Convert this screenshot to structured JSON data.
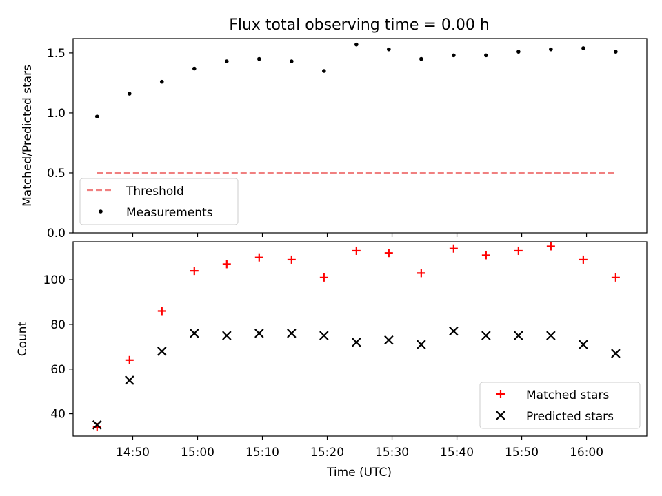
{
  "chart_data": [
    {
      "type": "scatter",
      "title": "Flux total observing time = 0.00 h",
      "xlabel": "",
      "ylabel": "Matched/Predicted stars",
      "ylim": [
        0,
        1.62
      ],
      "yticks": [
        0.0,
        0.5,
        1.0,
        1.5
      ],
      "ytick_labels": [
        "0.0",
        "0.5",
        "1.0",
        "1.5"
      ],
      "x_minutes": [
        884.5,
        889.5,
        894.5,
        899.5,
        904.5,
        909.5,
        914.5,
        919.5,
        924.5,
        929.5,
        934.5,
        939.5,
        944.5,
        949.5,
        954.5,
        959.5,
        964.5
      ],
      "series": [
        {
          "name": "Measurements",
          "marker": "dot",
          "color": "#000000",
          "values": [
            0.97,
            1.16,
            1.26,
            1.37,
            1.43,
            1.45,
            1.43,
            1.35,
            1.57,
            1.53,
            1.45,
            1.48,
            1.48,
            1.51,
            1.53,
            1.54,
            1.51
          ]
        }
      ],
      "threshold": {
        "name": "Threshold",
        "value": 0.5,
        "color": "#f08080",
        "style": "dashed"
      },
      "legend": {
        "position": "lower-left",
        "entries": [
          "Threshold",
          "Measurements"
        ]
      }
    },
    {
      "type": "scatter",
      "xlabel": "Time (UTC)",
      "ylabel": "Count",
      "ylim": [
        30,
        117
      ],
      "yticks": [
        40,
        60,
        80,
        100
      ],
      "ytick_labels": [
        "40",
        "60",
        "80",
        "100"
      ],
      "xlim": [
        880.8,
        969.3
      ],
      "xticks": [
        890,
        900,
        910,
        920,
        930,
        940,
        950,
        960
      ],
      "xtick_labels": [
        "14:50",
        "15:00",
        "15:10",
        "15:20",
        "15:30",
        "15:40",
        "15:50",
        "16:00"
      ],
      "x_minutes": [
        884.5,
        889.5,
        894.5,
        899.5,
        904.5,
        909.5,
        914.5,
        919.5,
        924.5,
        929.5,
        934.5,
        939.5,
        944.5,
        949.5,
        954.5,
        959.5,
        964.5
      ],
      "series": [
        {
          "name": "Matched stars",
          "marker": "plus",
          "color": "#ff0000",
          "values": [
            34,
            64,
            86,
            104,
            107,
            110,
            109,
            101,
            113,
            112,
            103,
            114,
            111,
            113,
            115,
            109,
            101
          ]
        },
        {
          "name": "Predicted stars",
          "marker": "x",
          "color": "#000000",
          "values": [
            35,
            55,
            68,
            76,
            75,
            76,
            76,
            75,
            72,
            73,
            71,
            77,
            75,
            75,
            75,
            71,
            67
          ]
        }
      ],
      "legend": {
        "position": "lower-right",
        "entries": [
          "Matched stars",
          "Predicted stars"
        ]
      }
    }
  ]
}
